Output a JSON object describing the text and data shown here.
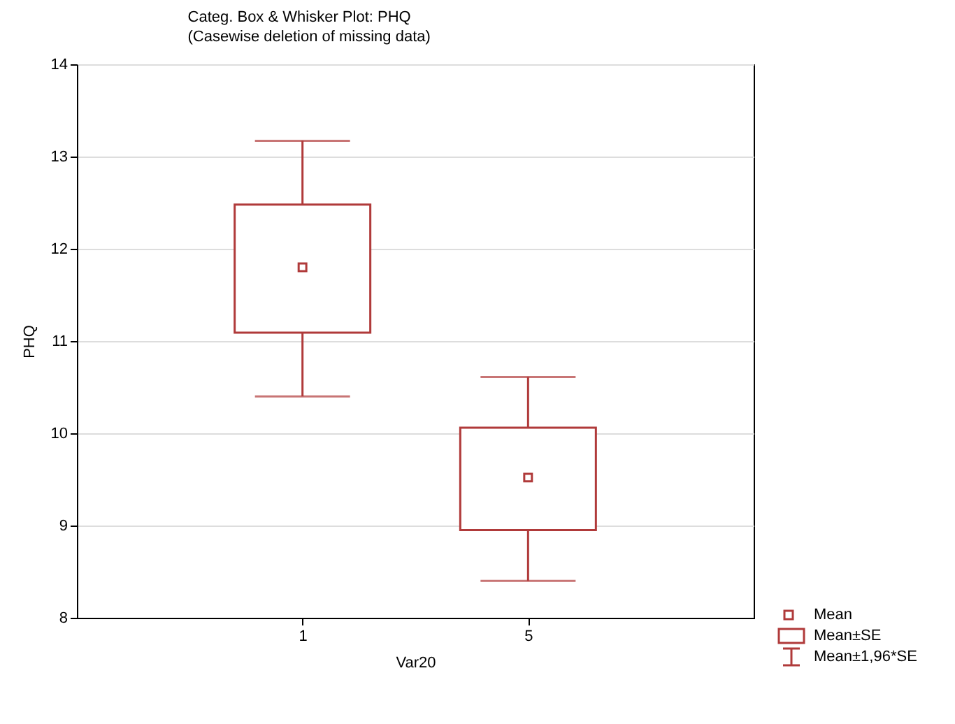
{
  "chart_data": {
    "type": "box",
    "title": "Categ. Box & Whisker Plot:    PHQ",
    "subtitle": "(Casewise deletion of missing data)",
    "xlabel": "Var20",
    "ylabel": "PHQ",
    "categories": [
      "1",
      "5"
    ],
    "boxes": [
      {
        "low": 10.4,
        "q1": 11.09,
        "q3": 12.48,
        "high": 13.17,
        "mean": 11.8
      },
      {
        "low": 8.4,
        "q1": 8.95,
        "q3": 10.06,
        "high": 10.61,
        "mean": 9.52
      }
    ],
    "color": "#b03a3a",
    "ylim": [
      8,
      14
    ],
    "yticks": [
      8,
      9,
      10,
      11,
      12,
      13,
      14
    ],
    "grid": "y",
    "marker": "square",
    "annotations": [
      "Mean",
      "Mean±SE",
      "Mean±1,96*SE"
    ]
  }
}
